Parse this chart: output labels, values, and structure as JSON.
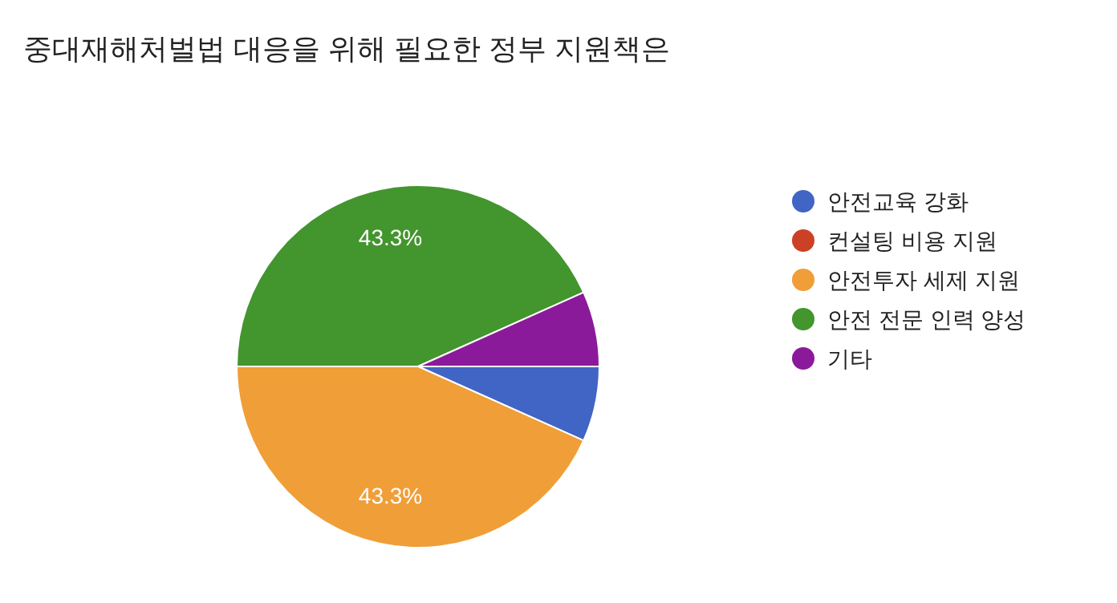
{
  "chart_data": {
    "type": "pie",
    "title": "중대재해처벌법 대응을 위해 필요한 정부 지원책은",
    "categories": [
      "안전교육 강화",
      "컨설팅 비용 지원",
      "안전투자 세제 지원",
      "안전 전문 인력 양성",
      "기타"
    ],
    "values": [
      6.7,
      0,
      43.3,
      43.3,
      6.7
    ],
    "colors": [
      "#4165c4",
      "#cc4125",
      "#f09e38",
      "#43952e",
      "#8b1a9a"
    ],
    "value_labels": [
      null,
      null,
      "43.3%",
      "43.3%",
      null
    ],
    "legend": "right"
  }
}
